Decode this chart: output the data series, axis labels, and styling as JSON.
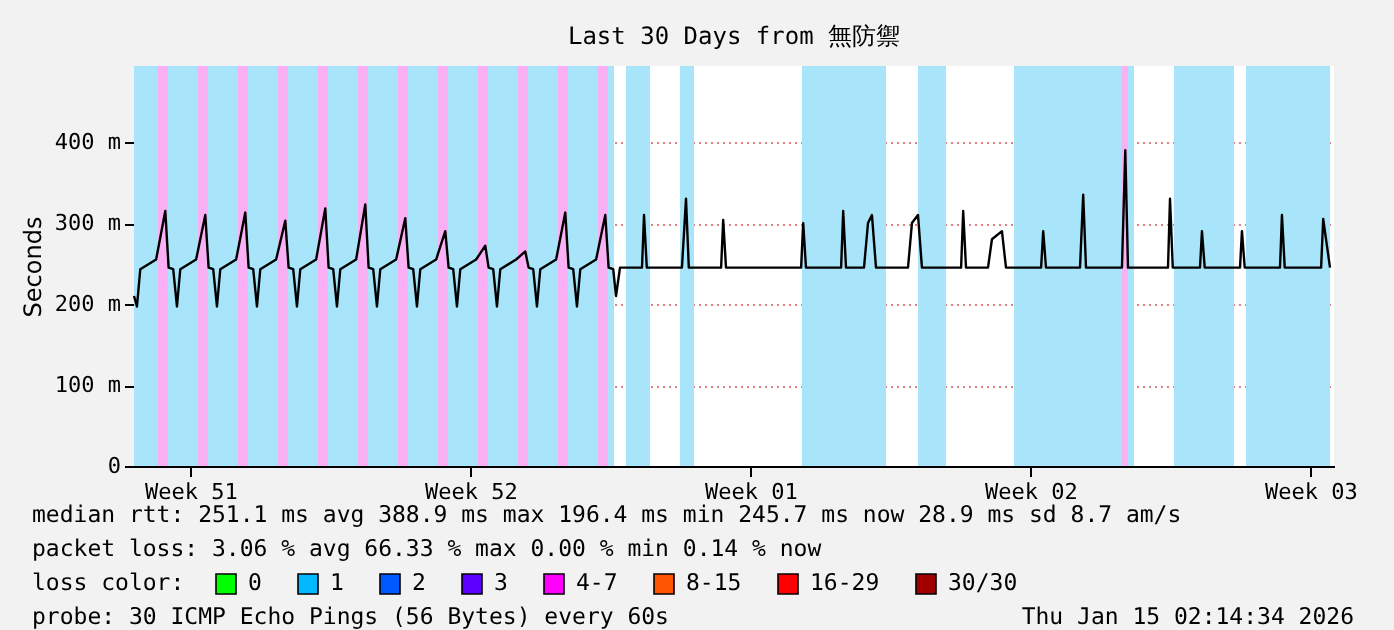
{
  "chart_data": {
    "type": "line",
    "title": "Last 30 Days from 無防禦",
    "ylabel": "Seconds",
    "xlim": [
      "2025-12-16T02:14",
      "2026-01-15T02:14"
    ],
    "xticks": [
      {
        "value": "2025-12-17T12:00",
        "label": "Week 51"
      },
      {
        "value": "2025-12-24T12:00",
        "label": "Week 52"
      },
      {
        "value": "2025-12-31T12:00",
        "label": "Week 01"
      },
      {
        "value": "2026-01-07T12:00",
        "label": "Week 02"
      },
      {
        "value": "2026-01-14T12:00",
        "label": "Week 03"
      }
    ],
    "ylim": [
      0,
      494
    ],
    "yticks": [
      0,
      {
        "value": 100,
        "label": "100 m"
      },
      {
        "value": 200,
        "label": "200 m"
      },
      {
        "value": 300,
        "label": "300 m"
      },
      {
        "value": 400,
        "label": "400 m"
      }
    ],
    "grid": "y",
    "marker": "none",
    "line_style": "solid",
    "legend": "bottom",
    "legend_title": "loss color:",
    "series": [
      {
        "color": "#000000",
        "x": [
          "2025-12-16T02:14",
          "2025-12-16T04:00",
          "2025-12-16T06:00",
          "2025-12-16T15:30",
          "2025-12-16T21:00",
          "2025-12-16T23:00",
          "2025-12-17T01:45",
          "2025-12-17T04:00",
          "2025-12-17T06:00",
          "2025-12-17T15:30",
          "2025-12-17T21:00",
          "2025-12-17T23:00",
          "2025-12-18T01:45",
          "2025-12-18T04:00",
          "2025-12-18T06:00",
          "2025-12-18T15:30",
          "2025-12-18T21:00",
          "2025-12-18T23:00",
          "2025-12-19T01:45",
          "2025-12-19T04:00",
          "2025-12-19T06:00",
          "2025-12-19T15:30",
          "2025-12-19T21:00",
          "2025-12-19T23:00",
          "2025-12-20T01:45",
          "2025-12-20T04:00",
          "2025-12-20T06:00",
          "2025-12-20T15:30",
          "2025-12-20T21:00",
          "2025-12-20T23:00",
          "2025-12-21T01:45",
          "2025-12-21T04:00",
          "2025-12-21T06:00",
          "2025-12-21T15:30",
          "2025-12-21T21:00",
          "2025-12-21T23:00",
          "2025-12-22T01:45",
          "2025-12-22T04:00",
          "2025-12-22T06:00",
          "2025-12-22T15:30",
          "2025-12-22T21:00",
          "2025-12-22T23:00",
          "2025-12-23T01:45",
          "2025-12-23T04:00",
          "2025-12-23T06:00",
          "2025-12-23T15:30",
          "2025-12-23T21:00",
          "2025-12-23T23:00",
          "2025-12-24T01:45",
          "2025-12-24T04:00",
          "2025-12-24T06:00",
          "2025-12-24T15:30",
          "2025-12-24T21:00",
          "2025-12-24T23:00",
          "2025-12-25T01:45",
          "2025-12-25T04:00",
          "2025-12-25T06:00",
          "2025-12-25T15:30",
          "2025-12-25T21:00",
          "2025-12-25T23:00",
          "2025-12-26T01:45",
          "2025-12-26T04:00",
          "2025-12-26T06:00",
          "2025-12-26T15:30",
          "2025-12-26T21:00",
          "2025-12-26T23:00",
          "2025-12-27T01:45",
          "2025-12-27T04:00",
          "2025-12-27T06:00",
          "2025-12-27T15:30",
          "2025-12-27T21:00",
          "2025-12-27T23:00",
          "2025-12-28T01:45",
          "2025-12-28T03:26",
          "2025-12-28T05:50",
          "2025-12-28T19:02",
          "2025-12-28T20:14",
          "2025-12-28T21:55",
          "2025-12-29T19:00",
          "2025-12-29T21:26",
          "2025-12-29T23:07",
          "2025-12-30T18:30",
          "2025-12-30T19:45",
          "2025-12-30T21:26",
          "2026-01-01T18:30",
          "2026-01-01T19:45",
          "2026-01-01T21:26",
          "2026-01-02T18:30",
          "2026-01-02T19:45",
          "2026-01-02T21:26",
          "2026-01-03T08:14",
          "2026-01-03T10:38",
          "2026-01-03T13:00",
          "2026-01-03T15:26",
          "2026-01-04T10:38",
          "2026-01-04T13:00",
          "2026-01-04T16:38",
          "2026-01-04T19:00",
          "2026-01-05T18:30",
          "2026-01-05T19:45",
          "2026-01-05T21:26",
          "2026-01-06T10:38",
          "2026-01-06T13:00",
          "2026-01-06T19:00",
          "2026-01-06T21:26",
          "2026-01-07T18:30",
          "2026-01-07T19:45",
          "2026-01-07T21:26",
          "2026-01-08T17:50",
          "2026-01-08T19:45",
          "2026-01-08T21:26",
          "2026-01-09T19:00",
          "2026-01-09T21:00",
          "2026-01-09T22:38",
          "2026-01-10T22:38",
          "2026-01-10T23:50",
          "2026-01-11T01:30",
          "2026-01-11T17:50",
          "2026-01-11T19:00",
          "2026-01-11T20:40",
          "2026-01-12T17:50",
          "2026-01-12T19:00",
          "2026-01-12T20:40",
          "2026-01-13T17:50",
          "2026-01-13T19:00",
          "2026-01-13T20:40",
          "2026-01-14T18:30",
          "2026-01-14T19:45",
          "2026-01-14T23:50"
        ],
        "values": [
          210,
          197,
          243,
          255,
          315,
          245,
          243,
          197,
          243,
          255,
          310,
          245,
          243,
          197,
          243,
          255,
          313,
          245,
          243,
          197,
          243,
          255,
          303,
          245,
          243,
          197,
          243,
          255,
          318,
          245,
          243,
          197,
          243,
          255,
          323,
          245,
          243,
          197,
          243,
          255,
          306,
          245,
          243,
          197,
          243,
          255,
          290,
          245,
          243,
          197,
          243,
          255,
          272,
          245,
          243,
          197,
          243,
          255,
          265,
          245,
          243,
          197,
          243,
          255,
          313,
          245,
          243,
          197,
          243,
          255,
          310,
          245,
          243,
          210,
          245,
          245,
          310,
          245,
          245,
          330,
          245,
          245,
          304,
          245,
          245,
          300,
          245,
          245,
          315,
          245,
          245,
          300,
          310,
          245,
          245,
          300,
          310,
          245,
          245,
          315,
          245,
          245,
          280,
          290,
          245,
          245,
          290,
          245,
          245,
          335,
          245,
          245,
          390,
          245,
          245,
          330,
          245,
          245,
          290,
          245,
          245,
          290,
          245,
          245,
          310,
          245,
          245,
          305,
          245
        ]
      },
      {
        "name": "0",
        "color": "#00ff00"
      },
      {
        "name": "1",
        "color": "#00b8ff"
      },
      {
        "name": "2",
        "color": "#0059ff"
      },
      {
        "name": "3",
        "color": "#5e00ff"
      },
      {
        "name": "4-7",
        "color": "#ff00ff"
      },
      {
        "name": "8-15",
        "color": "#ff5500"
      },
      {
        "name": "16-29",
        "color": "#ff0000"
      },
      {
        "name": "30/30",
        "color": "#a10000"
      }
    ],
    "bands": [
      {
        "axis": "x",
        "from": "2025-12-16T02:14",
        "to": "2025-12-28T02:14",
        "color": "#a8e4fa"
      },
      {
        "axis": "x",
        "from": "2025-12-16T16:38",
        "to": "2025-12-16T22:38",
        "color": "#fbb0f6"
      },
      {
        "axis": "x",
        "from": "2025-12-17T16:38",
        "to": "2025-12-17T22:38",
        "color": "#fbb0f6"
      },
      {
        "axis": "x",
        "from": "2025-12-18T16:38",
        "to": "2025-12-18T22:38",
        "color": "#fbb0f6"
      },
      {
        "axis": "x",
        "from": "2025-12-19T16:38",
        "to": "2025-12-19T22:38",
        "color": "#fbb0f6"
      },
      {
        "axis": "x",
        "from": "2025-12-20T16:38",
        "to": "2025-12-20T22:38",
        "color": "#fbb0f6"
      },
      {
        "axis": "x",
        "from": "2025-12-21T16:38",
        "to": "2025-12-21T22:38",
        "color": "#fbb0f6"
      },
      {
        "axis": "x",
        "from": "2025-12-22T16:38",
        "to": "2025-12-22T22:38",
        "color": "#fbb0f6"
      },
      {
        "axis": "x",
        "from": "2025-12-23T16:38",
        "to": "2025-12-23T22:38",
        "color": "#fbb0f6"
      },
      {
        "axis": "x",
        "from": "2025-12-24T16:38",
        "to": "2025-12-24T22:38",
        "color": "#fbb0f6"
      },
      {
        "axis": "x",
        "from": "2025-12-25T16:38",
        "to": "2025-12-25T22:38",
        "color": "#fbb0f6"
      },
      {
        "axis": "x",
        "from": "2025-12-26T16:38",
        "to": "2025-12-26T22:38",
        "color": "#fbb0f6"
      },
      {
        "axis": "x",
        "from": "2025-12-27T16:38",
        "to": "2025-12-27T22:38",
        "color": "#fbb0f6"
      },
      {
        "axis": "x",
        "from": "2025-12-28T09:26",
        "to": "2025-12-28T23:50",
        "color": "#a8e4fa"
      },
      {
        "axis": "x",
        "from": "2025-12-29T17:50",
        "to": "2025-12-30T02:14",
        "color": "#a8e4fa"
      },
      {
        "axis": "x",
        "from": "2026-01-01T19:00",
        "to": "2026-01-03T21:26",
        "color": "#a8e4fa"
      },
      {
        "axis": "x",
        "from": "2026-01-04T16:38",
        "to": "2026-01-05T09:26",
        "color": "#a8e4fa"
      },
      {
        "axis": "x",
        "from": "2026-01-07T02:14",
        "to": "2026-01-10T02:14",
        "color": "#a8e4fa"
      },
      {
        "axis": "x",
        "from": "2026-01-09T19:00",
        "to": "2026-01-09T22:38",
        "color": "#fbb0f6"
      },
      {
        "axis": "x",
        "from": "2026-01-11T02:14",
        "to": "2026-01-12T14:14",
        "color": "#a8e4fa"
      },
      {
        "axis": "x",
        "from": "2026-01-12T21:26",
        "to": "2026-01-14T23:50",
        "color": "#a8e4fa"
      }
    ],
    "annotations": [
      "median rtt:  251.1 ms avg  388.9 ms max  196.4 ms min  245.7 ms now  28.9 ms sd  8.7   am/s",
      "packet loss: 3.06 % avg  66.33 % max  0.00 % min  0.14 % now",
      "probe:       30 ICMP Echo Pings (56 Bytes) every 60s",
      "Thu Jan 15 02:14:34 2026"
    ]
  }
}
